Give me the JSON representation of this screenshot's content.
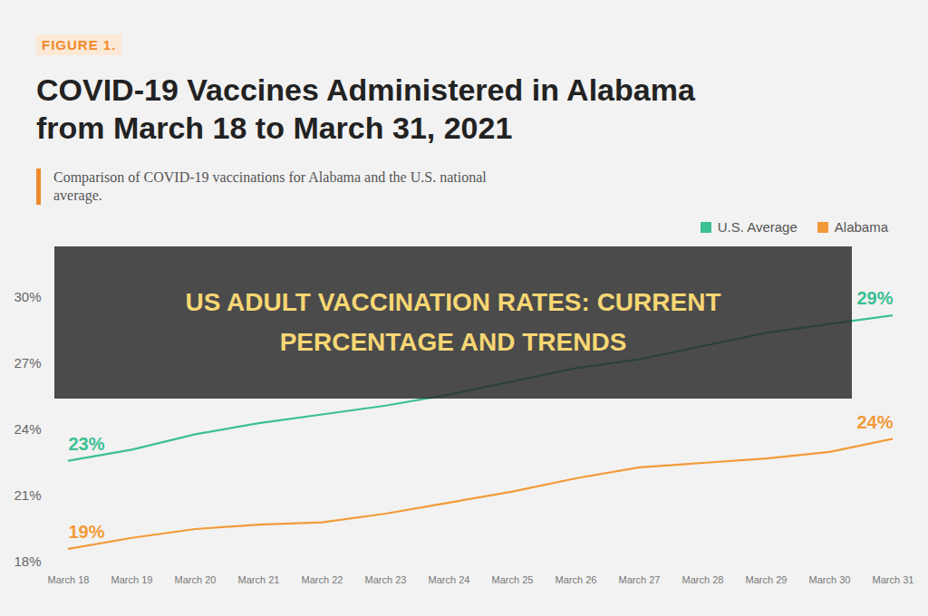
{
  "chart_data": {
    "type": "line",
    "kicker": "FIGURE 1.",
    "title": "COVID-19 Vaccines Administered in Alabama from March 18 to March 31, 2021",
    "subtitle": "Comparison of COVID-19 vaccinations for Alabama and the U.S. national average.",
    "banner": "US ADULT VACCINATION RATES: CURRENT PERCENTAGE AND TRENDS",
    "x": [
      "March 18",
      "March 19",
      "March 20",
      "March 21",
      "March 22",
      "March 23",
      "March 24",
      "March 25",
      "March 26",
      "March 27",
      "March 28",
      "March 29",
      "March 30",
      "March 31"
    ],
    "series": [
      {
        "name": "U.S. Average",
        "color": "#3cbf95",
        "values": [
          22.6,
          23.1,
          23.8,
          24.3,
          24.7,
          25.1,
          25.6,
          26.2,
          26.8,
          27.2,
          27.8,
          28.4,
          28.8,
          29.2
        ],
        "value_labels": [
          "23%",
          null,
          null,
          null,
          null,
          null,
          null,
          null,
          null,
          null,
          null,
          null,
          null,
          "29%"
        ]
      },
      {
        "name": "Alabama",
        "color": "#f29a38",
        "values": [
          18.6,
          19.1,
          19.5,
          19.7,
          19.8,
          20.2,
          20.7,
          21.2,
          21.8,
          22.3,
          22.5,
          22.7,
          23.0,
          23.6
        ],
        "value_labels": [
          "19%",
          null,
          null,
          null,
          null,
          null,
          null,
          null,
          null,
          null,
          null,
          null,
          null,
          "24%"
        ]
      }
    ],
    "ylim": [
      18,
      30
    ],
    "yticks": [
      {
        "value": 18,
        "label": "18%"
      },
      {
        "value": 21,
        "label": "21%"
      },
      {
        "value": 24,
        "label": "24%"
      },
      {
        "value": 27,
        "label": "27%"
      },
      {
        "value": 30,
        "label": "30%"
      }
    ],
    "grid": false,
    "legend": "top-right"
  }
}
